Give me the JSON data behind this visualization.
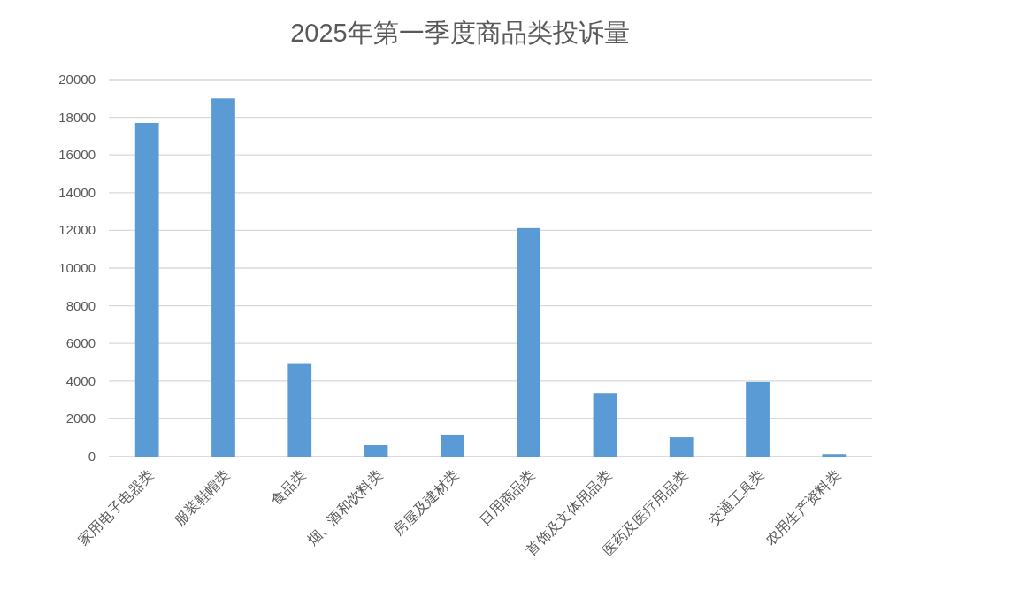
{
  "chart_data": {
    "type": "bar",
    "title": "2025年第一季度商品类投诉量",
    "categories": [
      "家用电子电器类",
      "服装鞋帽类",
      "食品类",
      "烟、酒和饮料类",
      "房屋及建材类",
      "日用商品类",
      "首饰及文体用品类",
      "医药及医疗用品类",
      "交通工具类",
      "农用生产资料类"
    ],
    "values": [
      17700,
      19000,
      4950,
      610,
      1130,
      12120,
      3370,
      1030,
      3950,
      130
    ],
    "color": "#5b9bd5",
    "ylim": [
      0,
      20000
    ],
    "yticks": [
      0,
      2000,
      4000,
      6000,
      8000,
      10000,
      12000,
      14000,
      16000,
      18000,
      20000
    ],
    "grid": "y"
  }
}
